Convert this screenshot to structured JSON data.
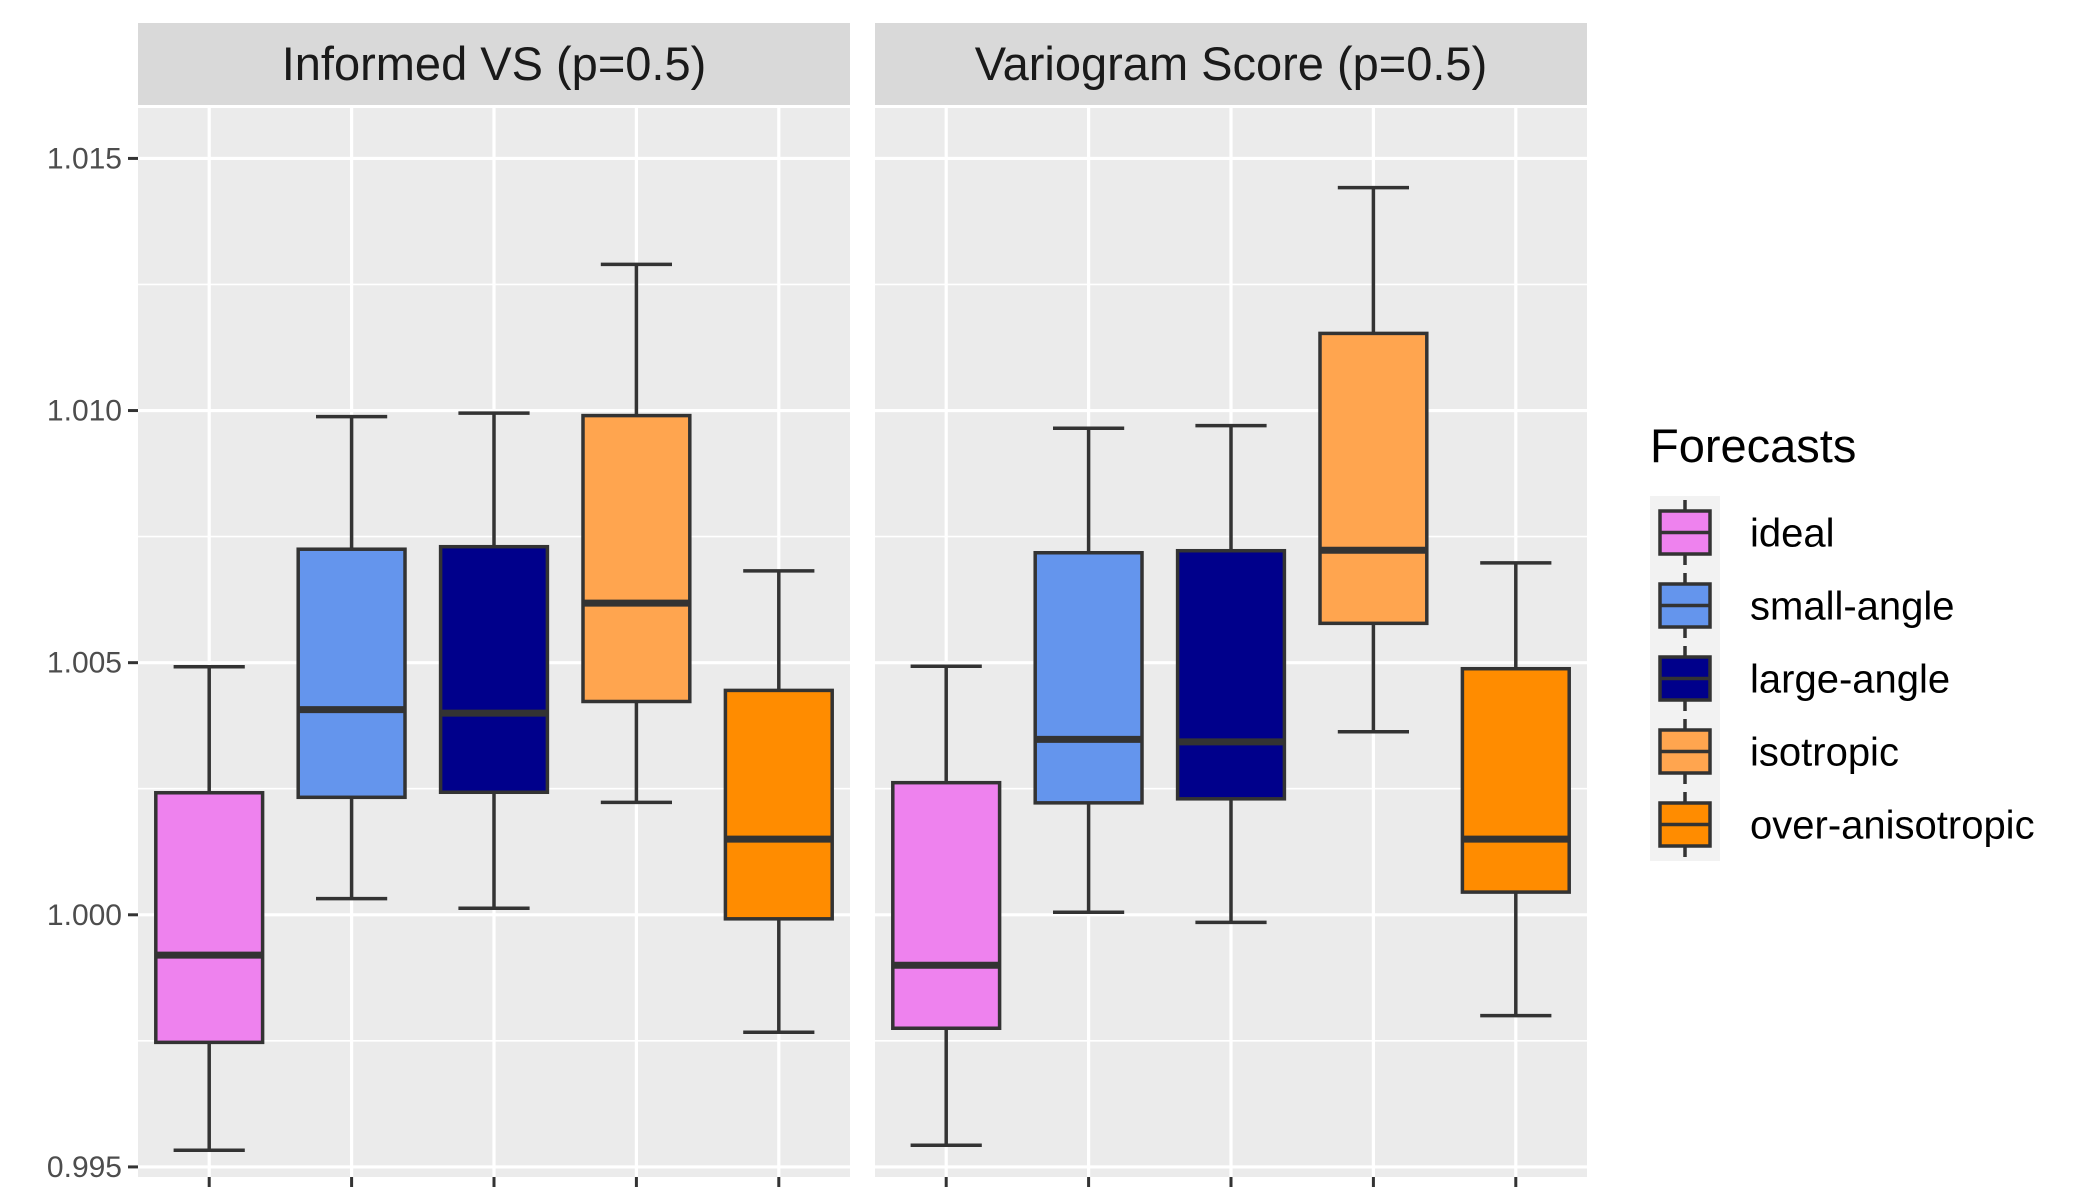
{
  "chart_data": {
    "type": "boxplot",
    "legend": {
      "title": "Forecasts",
      "position": "right",
      "entries": [
        "ideal",
        "small-angle",
        "large-angle",
        "isotropic",
        "over-anisotropic"
      ]
    },
    "colors": {
      "ideal": "#ee82ee",
      "small-angle": "#6495ed",
      "large-angle": "#00008b",
      "isotropic": "#ffa54f",
      "over-anisotropic": "#ff8c00"
    },
    "y_axis": {
      "ylim": [
        0.9948,
        1.016
      ],
      "ticks": [
        0.995,
        1.0,
        1.005,
        1.01,
        1.015
      ],
      "tick_labels": [
        "0.995",
        "1.000",
        "1.005",
        "1.010",
        "1.015"
      ]
    },
    "x_axis": {
      "tick_labels_shown": false
    },
    "grid": true,
    "panels": [
      {
        "title": "Informed VS (p=0.5)",
        "boxes": [
          {
            "group": "ideal",
            "whisker_low": 0.99533,
            "q1": 0.99747,
            "median": 0.9992,
            "q3": 1.00242,
            "whisker_high": 1.00492
          },
          {
            "group": "small-angle",
            "whisker_low": 1.00032,
            "q1": 1.00233,
            "median": 1.00407,
            "q3": 1.00725,
            "whisker_high": 1.00988
          },
          {
            "group": "large-angle",
            "whisker_low": 1.00013,
            "q1": 1.00243,
            "median": 1.004,
            "q3": 1.0073,
            "whisker_high": 1.00995
          },
          {
            "group": "isotropic",
            "whisker_low": 1.00223,
            "q1": 1.00423,
            "median": 1.00618,
            "q3": 1.0099,
            "whisker_high": 1.0129
          },
          {
            "group": "over-anisotropic",
            "whisker_low": 0.99767,
            "q1": 0.99992,
            "median": 1.0015,
            "q3": 1.00445,
            "whisker_high": 1.00682
          }
        ]
      },
      {
        "title": "Variogram Score (p=0.5)",
        "boxes": [
          {
            "group": "ideal",
            "whisker_low": 0.99543,
            "q1": 0.99775,
            "median": 0.999,
            "q3": 1.00262,
            "whisker_high": 1.00493
          },
          {
            "group": "small-angle",
            "whisker_low": 1.00005,
            "q1": 1.00222,
            "median": 1.00348,
            "q3": 1.00718,
            "whisker_high": 1.00965
          },
          {
            "group": "large-angle",
            "whisker_low": 0.99985,
            "q1": 1.0023,
            "median": 1.00343,
            "q3": 1.00722,
            "whisker_high": 1.0097
          },
          {
            "group": "isotropic",
            "whisker_low": 1.00363,
            "q1": 1.00578,
            "median": 1.00723,
            "q3": 1.01153,
            "whisker_high": 1.01442
          },
          {
            "group": "over-anisotropic",
            "whisker_low": 0.998,
            "q1": 1.00045,
            "median": 1.0015,
            "q3": 1.00488,
            "whisker_high": 1.00698
          }
        ]
      }
    ]
  }
}
